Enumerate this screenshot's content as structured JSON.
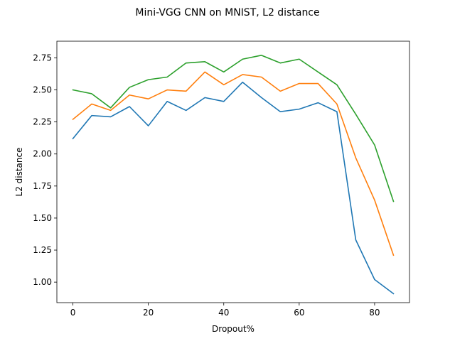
{
  "chart_data": {
    "type": "line",
    "title": "Mini-VGG CNN on MNIST, L2 distance",
    "xlabel": "Dropout%",
    "ylabel": "L2 distance",
    "xlim": [
      -4.25,
      89.25
    ],
    "ylim": [
      0.84,
      2.88
    ],
    "xticks": [
      0,
      20,
      40,
      60,
      80
    ],
    "yticks": [
      1.0,
      1.25,
      1.5,
      1.75,
      2.0,
      2.25,
      2.5,
      2.75
    ],
    "ytick_labels": [
      "1.00",
      "1.25",
      "1.50",
      "1.75",
      "2.00",
      "2.25",
      "2.50",
      "2.75"
    ],
    "grid": false,
    "x": [
      0,
      5,
      10,
      15,
      20,
      25,
      30,
      35,
      40,
      45,
      50,
      55,
      60,
      65,
      70,
      75,
      80,
      85
    ],
    "series": [
      {
        "color": "#1f77b4",
        "values": [
          2.12,
          2.3,
          2.29,
          2.37,
          2.22,
          2.41,
          2.34,
          2.44,
          2.41,
          2.56,
          2.44,
          2.33,
          2.35,
          2.4,
          2.33,
          1.33,
          1.02,
          0.91
        ]
      },
      {
        "color": "#ff7f0e",
        "values": [
          2.27,
          2.39,
          2.34,
          2.46,
          2.43,
          2.5,
          2.49,
          2.64,
          2.54,
          2.62,
          2.6,
          2.49,
          2.55,
          2.55,
          2.39,
          1.97,
          1.64,
          1.21
        ]
      },
      {
        "color": "#2ca02c",
        "values": [
          2.5,
          2.47,
          2.36,
          2.52,
          2.58,
          2.6,
          2.71,
          2.72,
          2.64,
          2.74,
          2.77,
          2.71,
          2.74,
          2.64,
          2.54,
          2.31,
          2.07,
          1.63
        ]
      }
    ]
  }
}
